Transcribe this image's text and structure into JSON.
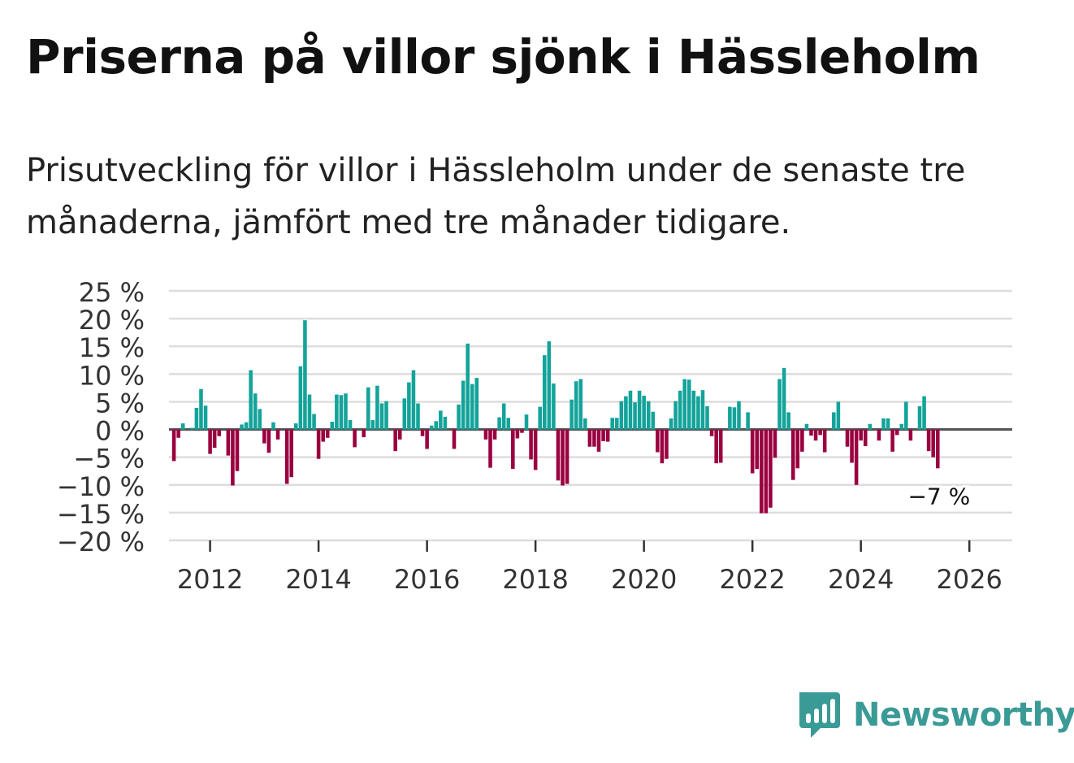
{
  "title": "Priserna på villor sjönk i Hässleholm",
  "subtitle": "Prisutveckling för villor i Hässleholm under de senaste tre månaderna, jämfört med tre månader tidigare.",
  "brand": {
    "name": "Newsworthy",
    "logo_icon": "bar-chart-speech-bubble-icon"
  },
  "colors": {
    "positive": "#13a39a",
    "negative": "#9a0040",
    "grid": "#dddddd",
    "zero_line": "#555555",
    "brand": "#3a9a96"
  },
  "chart_data": {
    "type": "bar",
    "title": "Priserna på villor sjönk i Hässleholm",
    "xlabel": "",
    "ylabel": "",
    "ylim": [
      -20,
      25
    ],
    "y_ticks": [
      25,
      20,
      15,
      10,
      5,
      0,
      -5,
      -10,
      -15,
      -20
    ],
    "y_tick_labels": [
      "25 %",
      "20 %",
      "15 %",
      "10 %",
      "5 %",
      "0 %",
      "−5 %",
      "−10 %",
      "−15 %",
      "−20 %"
    ],
    "x_tick_labels": [
      "2012",
      "2014",
      "2016",
      "2018",
      "2020",
      "2022",
      "2024",
      "2026"
    ],
    "start": "2011-05",
    "frequency": "monthly",
    "values": [
      -5.7,
      -1.5,
      1.1,
      0,
      0.3,
      3.9,
      7.3,
      4.3,
      -4.4,
      -3.3,
      -1.2,
      0,
      -4.7,
      -10.1,
      -7.5,
      0.9,
      1.3,
      10.7,
      6.5,
      3.7,
      -2.5,
      -4.2,
      1.3,
      -1.8,
      0,
      -9.8,
      -8.6,
      1.1,
      11.4,
      19.7,
      6.3,
      2.8,
      -5.3,
      -2.2,
      -1.5,
      1.4,
      6.3,
      6.2,
      6.5,
      1.7,
      -3.2,
      0,
      -1.4,
      7.6,
      1.7,
      7.9,
      4.7,
      5.1,
      0,
      -3.9,
      -1.8,
      5.6,
      8.5,
      10.7,
      4.7,
      -1.2,
      -3.5,
      0.7,
      1.5,
      3.4,
      2.3,
      0,
      -3.5,
      4.5,
      8.8,
      15.5,
      8.2,
      9.3,
      0,
      -1.8,
      -6.9,
      -1.8,
      2.2,
      4.7,
      2.1,
      -7.1,
      -1.6,
      -0.6,
      2.7,
      -5.4,
      -7.3,
      4.1,
      13.4,
      15.9,
      8.3,
      -9.2,
      -10.1,
      -9.8,
      5.4,
      8.7,
      9.1,
      2.0,
      -3.1,
      -3.1,
      -4.0,
      -2.1,
      -2.2,
      2.1,
      2.1,
      5.1,
      6.0,
      7.0,
      4.9,
      7.0,
      6.1,
      5.1,
      3.2,
      -4.1,
      -6.1,
      -5.3,
      2.0,
      5.1,
      7.0,
      9.1,
      9.0,
      7.0,
      6.0,
      7.1,
      4.2,
      -1.2,
      -6.1,
      -6.0,
      0,
      4.1,
      4.0,
      5.1,
      0,
      3.1,
      -7.9,
      -7.1,
      -15.1,
      -15.1,
      -14.1,
      -5.1,
      9.1,
      11.1,
      3.1,
      -9.1,
      -7.0,
      -4.0,
      1.0,
      -1.1,
      -2.0,
      -1.0,
      -4.1,
      0,
      3.1,
      5.0,
      0,
      -3.1,
      -6.0,
      -10.0,
      -2.0,
      -3.0,
      1.0,
      0,
      -2.0,
      2.0,
      2.0,
      -4.0,
      -1.0,
      1.0,
      5.0,
      -2.0,
      0,
      4.2,
      6.0,
      -3.9,
      -5.0,
      -7.0
    ],
    "last_value_label": "−7 %"
  }
}
